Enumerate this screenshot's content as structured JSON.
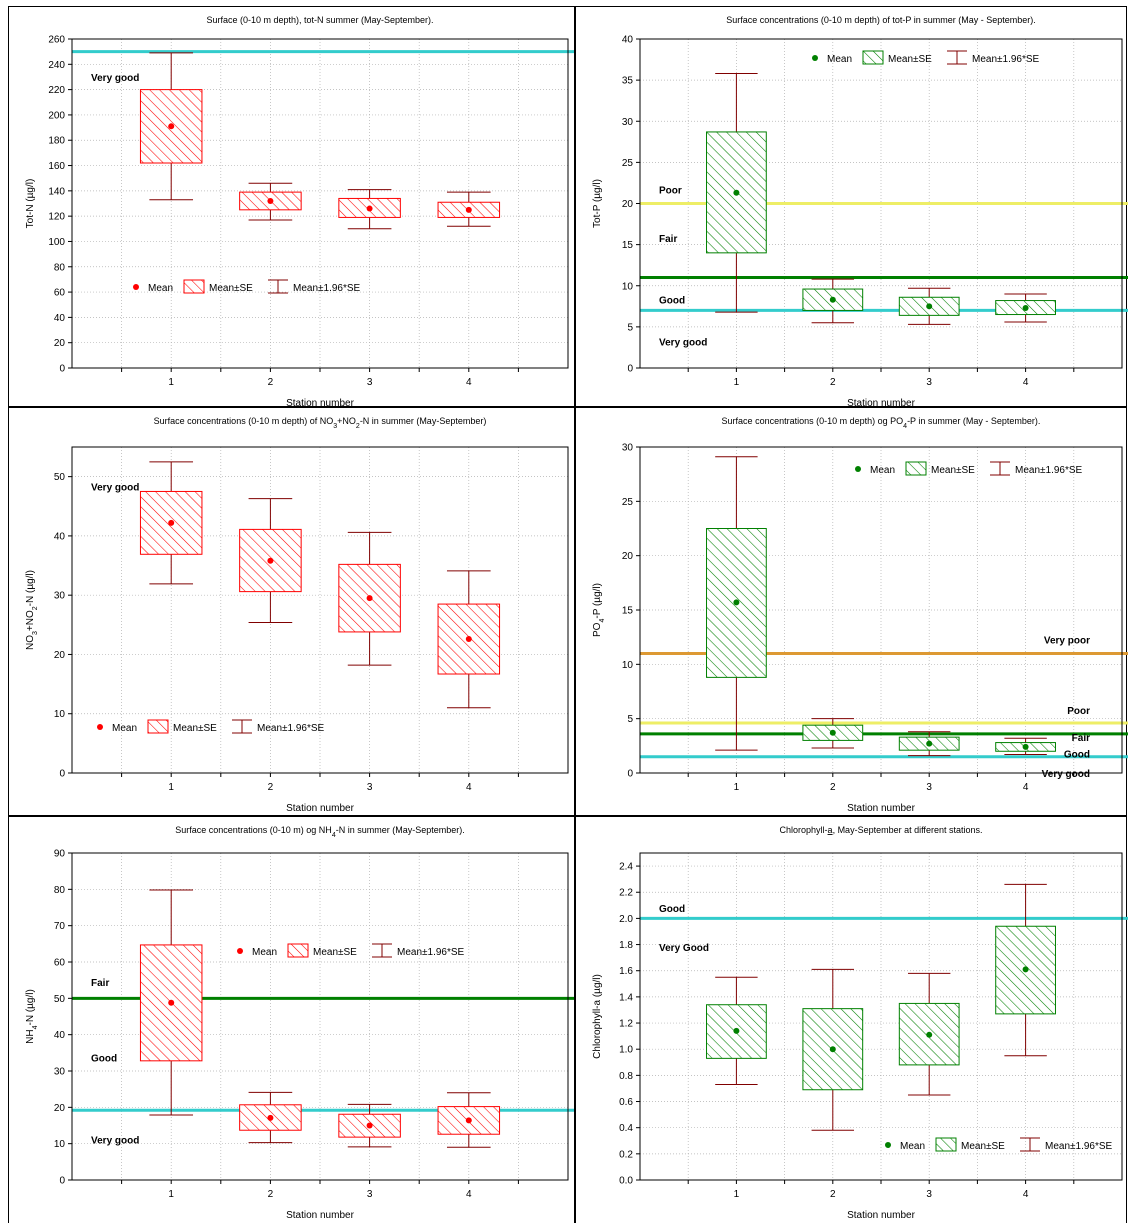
{
  "colors": {
    "red_box": "#ff0000",
    "red_point": "#ff0000",
    "green_box": "#008000",
    "green_point": "#008000",
    "whisker": "#800000",
    "cyan_line": "#33cccc",
    "green_line": "#008000",
    "yellow_line": "#eeee66",
    "orange_line": "#dd9933"
  },
  "legend_labels": {
    "mean": "Mean",
    "se": "Mean±SE",
    "ci": "Mean±1.96*SE"
  },
  "chart_data": [
    {
      "type": "box",
      "title": "Surface (0-10 m depth), tot-N summer (May-September).",
      "title_parts": [
        {
          "t": "Surface (0-10 m depth), tot-N summer (May-September)."
        }
      ],
      "xlabel": "Station number",
      "ylabel": "Tot-N (µg/l)",
      "ylabel_parts": [
        {
          "t": "Tot-N (µg/l)"
        }
      ],
      "ylim": [
        0,
        260
      ],
      "yticks": [
        "0",
        "20",
        "40",
        "60",
        "80",
        "100",
        "120",
        "140",
        "160",
        "180",
        "200",
        "220",
        "240",
        "260"
      ],
      "grid": true,
      "legend_position": "bottom-left",
      "style": "red",
      "categories": [
        "1",
        "2",
        "3",
        "4"
      ],
      "series": [
        {
          "station": "1",
          "mean": 191,
          "se_low": 162,
          "se_high": 220,
          "ci_low": 133,
          "ci_high": 249
        },
        {
          "station": "2",
          "mean": 132,
          "se_low": 125,
          "se_high": 139,
          "ci_low": 117,
          "ci_high": 146
        },
        {
          "station": "3",
          "mean": 126,
          "se_low": 119,
          "se_high": 134,
          "ci_low": 110,
          "ci_high": 141
        },
        {
          "station": "4",
          "mean": 125,
          "se_low": 119,
          "se_high": 131,
          "ci_low": 112,
          "ci_high": 139
        }
      ],
      "reference_lines": [
        {
          "value": 250,
          "color": "#33cccc"
        }
      ],
      "class_labels": [
        {
          "text": "Very good",
          "y": 230,
          "align": "left"
        }
      ]
    },
    {
      "type": "box",
      "title": "Surface concentrations (0-10 m depth) of tot-P in summer (May - September).",
      "title_parts": [
        {
          "t": "Surface concentrations (0-10 m depth) of tot-P in summer (May - September)."
        }
      ],
      "xlabel": "Station number",
      "ylabel": "Tot-P (µg/l)",
      "ylabel_parts": [
        {
          "t": "Tot-P (µg/l)"
        }
      ],
      "ylim": [
        0,
        40
      ],
      "yticks": [
        "0",
        "5",
        "10",
        "15",
        "20",
        "25",
        "30",
        "35",
        "40"
      ],
      "grid": true,
      "legend_position": "top-right",
      "style": "green",
      "categories": [
        "1",
        "2",
        "3",
        "4"
      ],
      "series": [
        {
          "station": "1",
          "mean": 21.3,
          "se_low": 14,
          "se_high": 28.7,
          "ci_low": 6.8,
          "ci_high": 35.8
        },
        {
          "station": "2",
          "mean": 8.3,
          "se_low": 7,
          "se_high": 9.6,
          "ci_low": 5.5,
          "ci_high": 10.8
        },
        {
          "station": "3",
          "mean": 7.5,
          "se_low": 6.4,
          "se_high": 8.6,
          "ci_low": 5.3,
          "ci_high": 9.7
        },
        {
          "station": "4",
          "mean": 7.3,
          "se_low": 6.5,
          "se_high": 8.2,
          "ci_low": 5.6,
          "ci_high": 9.0
        }
      ],
      "reference_lines": [
        {
          "value": 20,
          "color": "#eeee66"
        },
        {
          "value": 11,
          "color": "#008000"
        },
        {
          "value": 7,
          "color": "#33cccc"
        }
      ],
      "class_labels": [
        {
          "text": "Poor",
          "y": 21.7,
          "align": "left"
        },
        {
          "text": "Fair",
          "y": 15.8,
          "align": "left"
        },
        {
          "text": "Good",
          "y": 8.3,
          "align": "left"
        },
        {
          "text": "Very good",
          "y": 3.2,
          "align": "left"
        }
      ]
    },
    {
      "type": "box",
      "title": "Surface concentrations (0-10 m depth) of NO₃+NO₂-N in summer (May-September)",
      "title_parts": [
        {
          "t": "Surface concentrations (0-10 m depth) of NO"
        },
        {
          "t": "3",
          "sub": true
        },
        {
          "t": "+NO"
        },
        {
          "t": "2",
          "sub": true
        },
        {
          "t": "-N in summer (May-September)"
        }
      ],
      "xlabel": "Station number",
      "ylabel": "NO₃+NO₂-N (µg/l)",
      "ylabel_parts": [
        {
          "t": "NO"
        },
        {
          "t": "3",
          "sub": true
        },
        {
          "t": "+NO"
        },
        {
          "t": "2",
          "sub": true
        },
        {
          "t": "-N (µg/l)"
        }
      ],
      "ylim": [
        0,
        55
      ],
      "yticks": [
        "0",
        "10",
        "20",
        "30",
        "40",
        "50"
      ],
      "grid": true,
      "legend_position": "bottom-left",
      "style": "red",
      "categories": [
        "1",
        "2",
        "3",
        "4"
      ],
      "series": [
        {
          "station": "1",
          "mean": 42.2,
          "se_low": 36.9,
          "se_high": 47.5,
          "ci_low": 31.9,
          "ci_high": 52.5
        },
        {
          "station": "2",
          "mean": 35.8,
          "se_low": 30.6,
          "se_high": 41.1,
          "ci_low": 25.4,
          "ci_high": 46.3
        },
        {
          "station": "3",
          "mean": 29.5,
          "se_low": 23.8,
          "se_high": 35.2,
          "ci_low": 18.2,
          "ci_high": 40.6
        },
        {
          "station": "4",
          "mean": 22.6,
          "se_low": 16.7,
          "se_high": 28.5,
          "ci_low": 11,
          "ci_high": 34.1
        }
      ],
      "reference_lines": [],
      "class_labels": [
        {
          "text": "Very good",
          "y": 48.3,
          "align": "left"
        }
      ]
    },
    {
      "type": "box",
      "title": "Surface concentrations (0-10 m depth) og PO₄-P in summer (May - September).",
      "title_parts": [
        {
          "t": "Surface concentrations (0-10 m depth) og PO"
        },
        {
          "t": "4",
          "sub": true
        },
        {
          "t": "-P in summer (May - September)."
        }
      ],
      "xlabel": "Station number",
      "ylabel": "PO₄-P (µg/l)",
      "ylabel_parts": [
        {
          "t": "PO"
        },
        {
          "t": "4",
          "sub": true
        },
        {
          "t": "-P (µg/l)"
        }
      ],
      "ylim": [
        0,
        30
      ],
      "yticks": [
        "0",
        "5",
        "10",
        "15",
        "20",
        "25",
        "30"
      ],
      "grid": true,
      "legend_position": "top-right",
      "style": "green",
      "categories": [
        "1",
        "2",
        "3",
        "4"
      ],
      "series": [
        {
          "station": "1",
          "mean": 15.7,
          "se_low": 8.8,
          "se_high": 22.5,
          "ci_low": 2.1,
          "ci_high": 29.1
        },
        {
          "station": "2",
          "mean": 3.7,
          "se_low": 3.0,
          "se_high": 4.4,
          "ci_low": 2.3,
          "ci_high": 5.0
        },
        {
          "station": "3",
          "mean": 2.7,
          "se_low": 2.1,
          "se_high": 3.3,
          "ci_low": 1.6,
          "ci_high": 3.8
        },
        {
          "station": "4",
          "mean": 2.4,
          "se_low": 2.0,
          "se_high": 2.8,
          "ci_low": 1.7,
          "ci_high": 3.2
        }
      ],
      "reference_lines": [
        {
          "value": 11,
          "color": "#dd9933"
        },
        {
          "value": 4.6,
          "color": "#eeee66"
        },
        {
          "value": 3.6,
          "color": "#008000"
        },
        {
          "value": 1.5,
          "color": "#33cccc"
        }
      ],
      "class_labels": [
        {
          "text": "Very poor",
          "y": 12.3,
          "align": "right"
        },
        {
          "text": "Poor",
          "y": 5.8,
          "align": "right"
        },
        {
          "text": "Fair",
          "y": 3.3,
          "align": "right"
        },
        {
          "text": "Good",
          "y": 1.8,
          "align": "right"
        },
        {
          "text": "Very good",
          "y": 0.0,
          "align": "right"
        }
      ]
    },
    {
      "type": "box",
      "title": "Surface concentrations (0-10 m) og NH₄-N in summer (May-September).",
      "title_parts": [
        {
          "t": "Surface concentrations (0-10 m) og NH"
        },
        {
          "t": "4",
          "sub": true
        },
        {
          "t": "-N in summer (May-September)."
        }
      ],
      "xlabel": "Station number",
      "ylabel": "NH₄-N (µg/l)",
      "ylabel_parts": [
        {
          "t": "NH"
        },
        {
          "t": "4",
          "sub": true
        },
        {
          "t": "-N (µg/l)"
        }
      ],
      "ylim": [
        0,
        90
      ],
      "yticks": [
        "0",
        "10",
        "20",
        "30",
        "40",
        "50",
        "60",
        "70",
        "80",
        "90"
      ],
      "grid": true,
      "legend_position": "top-right",
      "style": "red",
      "categories": [
        "1",
        "2",
        "3",
        "4"
      ],
      "series": [
        {
          "station": "1",
          "mean": 48.8,
          "se_low": 32.8,
          "se_high": 64.7,
          "ci_low": 17.9,
          "ci_high": 79.8
        },
        {
          "station": "2",
          "mean": 17.1,
          "se_low": 13.7,
          "se_high": 20.7,
          "ci_low": 10.3,
          "ci_high": 24.1
        },
        {
          "station": "3",
          "mean": 15,
          "se_low": 11.8,
          "se_high": 18.1,
          "ci_low": 9.1,
          "ci_high": 20.8
        },
        {
          "station": "4",
          "mean": 16.4,
          "se_low": 12.6,
          "se_high": 20.2,
          "ci_low": 9.0,
          "ci_high": 24.0
        }
      ],
      "reference_lines": [
        {
          "value": 50,
          "color": "#008000"
        },
        {
          "value": 19.2,
          "color": "#33cccc"
        }
      ],
      "class_labels": [
        {
          "text": "Fair",
          "y": 54.5,
          "align": "left"
        },
        {
          "text": "Good",
          "y": 33.7,
          "align": "left"
        },
        {
          "text": "Very good",
          "y": 11.2,
          "align": "left"
        }
      ]
    },
    {
      "type": "box",
      "title": "Chlorophyll-a, May-September at different stations.",
      "title_parts": [
        {
          "t": "Chlorophyll-"
        },
        {
          "t": "a",
          "u": true
        },
        {
          "t": ", May-September at different stations."
        }
      ],
      "xlabel": "Station number",
      "ylabel": "Chlorophyll-a (µg/l)",
      "ylabel_parts": [
        {
          "t": "Chlorophyll-a (µg/l)"
        }
      ],
      "ylim": [
        0,
        2.5
      ],
      "yticks": [
        "0.0",
        "0.2",
        "0.4",
        "0.6",
        "0.8",
        "1.0",
        "1.2",
        "1.4",
        "1.6",
        "1.8",
        "2.0",
        "2.2",
        "2.4"
      ],
      "grid": true,
      "legend_position": "bottom-right",
      "style": "green",
      "categories": [
        "1",
        "2",
        "3",
        "4"
      ],
      "series": [
        {
          "station": "1",
          "mean": 1.14,
          "se_low": 0.93,
          "se_high": 1.34,
          "ci_low": 0.73,
          "ci_high": 1.55
        },
        {
          "station": "2",
          "mean": 1.0,
          "se_low": 0.69,
          "se_high": 1.31,
          "ci_low": 0.38,
          "ci_high": 1.61
        },
        {
          "station": "3",
          "mean": 1.11,
          "se_low": 0.88,
          "se_high": 1.35,
          "ci_low": 0.65,
          "ci_high": 1.58
        },
        {
          "station": "4",
          "mean": 1.61,
          "se_low": 1.27,
          "se_high": 1.94,
          "ci_low": 0.95,
          "ci_high": 2.26
        }
      ],
      "reference_lines": [
        {
          "value": 2.0,
          "color": "#33cccc"
        }
      ],
      "class_labels": [
        {
          "text": "Good",
          "y": 2.08,
          "align": "left"
        },
        {
          "text": "Very Good",
          "y": 1.78,
          "align": "left"
        }
      ]
    }
  ]
}
